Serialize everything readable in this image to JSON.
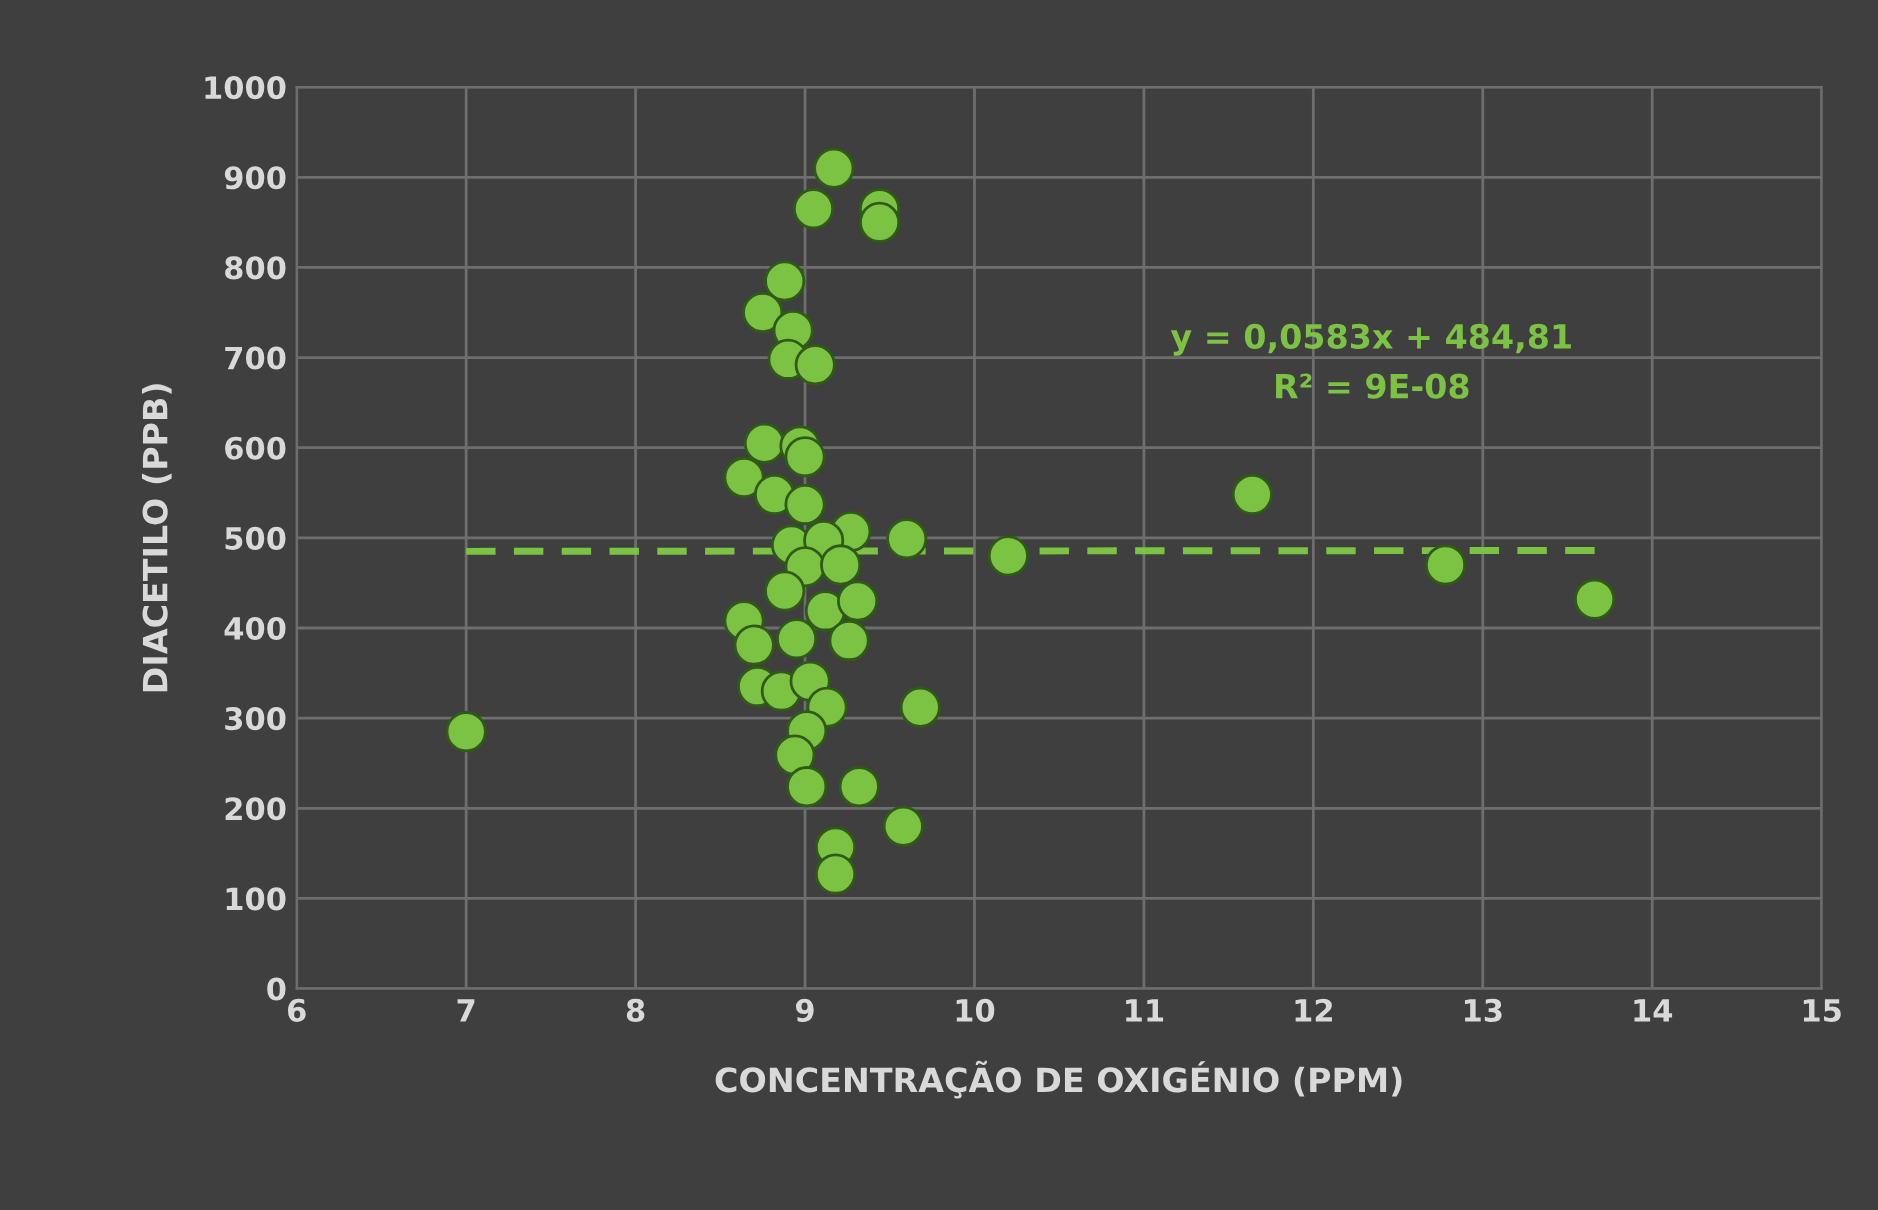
{
  "chart_data": {
    "type": "scatter",
    "xlabel": "CONCENTRAÇÃO DE OXIGÉNIO (PPM)",
    "ylabel": "DIACETILO (PPB)",
    "xlim": [
      6,
      15
    ],
    "xticks": [
      6,
      7,
      8,
      9,
      10,
      11,
      12,
      13,
      14,
      15
    ],
    "ylim": [
      0,
      1000
    ],
    "yticks": [
      0,
      100,
      200,
      300,
      400,
      500,
      600,
      700,
      800,
      900,
      1000
    ],
    "grid": true,
    "marker": "circle",
    "legend": false,
    "series": [
      {
        "color": "#7dc343",
        "x": [
          7.0,
          9.17,
          9.05,
          9.44,
          9.44,
          8.88,
          8.75,
          8.93,
          8.9,
          9.06,
          8.76,
          8.97,
          9.0,
          8.64,
          8.82,
          9.0,
          9.27,
          9.6,
          8.92,
          9.11,
          9.0,
          9.21,
          8.88,
          9.12,
          9.31,
          8.64,
          8.7,
          8.95,
          9.26,
          8.72,
          8.86,
          9.03,
          9.13,
          9.68,
          9.01,
          8.94,
          9.01,
          9.32,
          9.58,
          9.18,
          9.18,
          10.2,
          11.64,
          12.78,
          13.66
        ],
        "values": [
          285,
          910,
          865,
          865,
          850,
          785,
          750,
          730,
          698,
          692,
          605,
          602,
          590,
          567,
          548,
          537,
          507,
          499,
          492,
          497,
          468,
          470,
          441,
          419,
          430,
          408,
          381,
          388,
          386,
          335,
          330,
          341,
          312,
          312,
          286,
          259,
          224,
          224,
          180,
          157,
          127,
          480,
          548,
          470,
          432
        ]
      },
      {
        "type": "line",
        "color": "#7dc343",
        "line_style": "dashed",
        "marker": "none",
        "x": [
          7.0,
          13.66
        ],
        "values": [
          485,
          486
        ]
      }
    ],
    "annotations": [
      "y = 0,0583x + 484,81",
      "R² = 9E-08"
    ]
  }
}
